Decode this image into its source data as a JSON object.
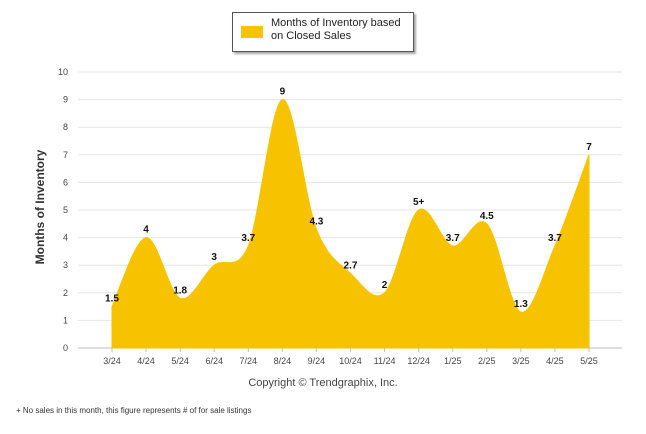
{
  "chart_data": {
    "type": "area",
    "categories": [
      "3/24",
      "4/24",
      "5/24",
      "6/24",
      "7/24",
      "8/24",
      "9/24",
      "10/24",
      "11/24",
      "12/24",
      "1/25",
      "2/25",
      "3/25",
      "4/25",
      "5/25"
    ],
    "values": [
      1.5,
      4,
      1.8,
      3,
      3.7,
      9,
      4.3,
      2.7,
      2,
      5,
      3.7,
      4.5,
      1.3,
      3.7,
      7
    ],
    "data_labels": [
      "1.5",
      "4",
      "1.8",
      "3",
      "3.7",
      "9",
      "4.3",
      "2.7",
      "2",
      "5+",
      "3.7",
      "4.5",
      "1.3",
      "3.7",
      "7"
    ],
    "ylabel": "Months of Inventory",
    "xlabel": "",
    "ylim": [
      0,
      10
    ],
    "yticks": [
      0,
      1,
      2,
      3,
      4,
      5,
      6,
      7,
      8,
      9,
      10
    ],
    "grid": true,
    "legend": {
      "placement": "top-center",
      "label": "Months of Inventory based on Closed Sales"
    },
    "color": "#f7c200"
  },
  "copyright": "Copyright © Trendgraphix, Inc.",
  "footnote": "+ No sales in this month, this figure represents # of for sale listings"
}
